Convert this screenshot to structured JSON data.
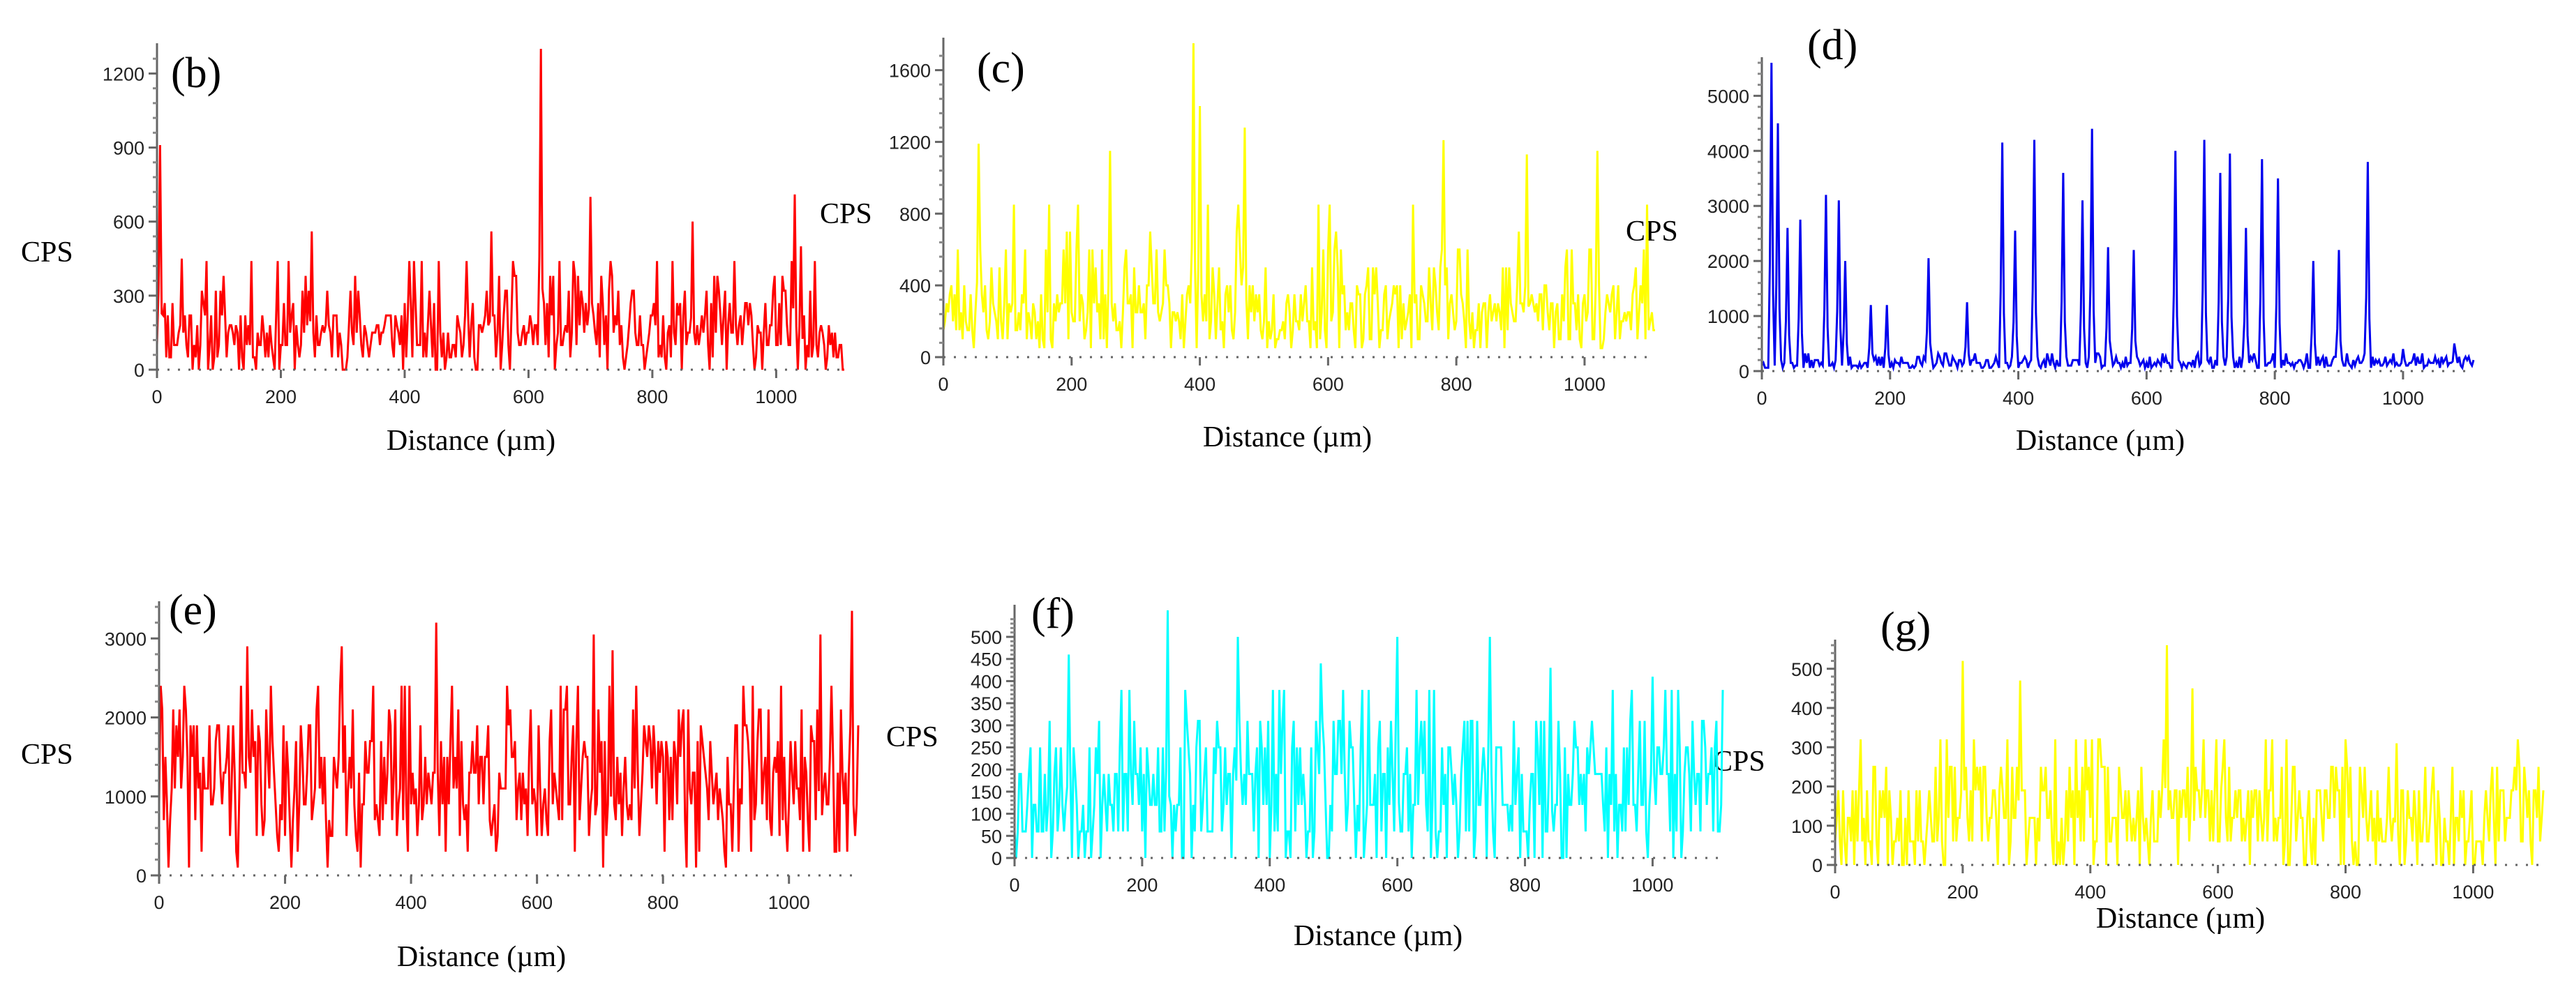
{
  "chart_data": [
    {
      "type": "line",
      "panel_label": "(b)",
      "color": "#ff0000",
      "xlabel": "Distance (µm)",
      "ylabel": "CPS",
      "xlim": [
        0,
        1110
      ],
      "ylim": [
        0,
        1300
      ],
      "xticks": [
        0,
        200,
        400,
        600,
        800,
        1000
      ],
      "yticks": [
        0,
        300,
        600,
        900,
        1200
      ],
      "x_step_um": 2.5,
      "baseline": {
        "levels": [
          0,
          50,
          100,
          150,
          180,
          220,
          270,
          320,
          380,
          440
        ],
        "weights": [
          2,
          4,
          5,
          4,
          3,
          3,
          2,
          2,
          1,
          1
        ]
      },
      "seed": 11,
      "peaks": [
        {
          "x": 5,
          "y": 910
        },
        {
          "x": 40,
          "y": 450
        },
        {
          "x": 250,
          "y": 560
        },
        {
          "x": 540,
          "y": 560
        },
        {
          "x": 620,
          "y": 1310
        },
        {
          "x": 700,
          "y": 700
        },
        {
          "x": 865,
          "y": 600
        },
        {
          "x": 1030,
          "y": 710
        },
        {
          "x": 1040,
          "y": 500
        }
      ]
    },
    {
      "type": "line",
      "panel_label": "(c)",
      "color": "#ffff00",
      "xlabel": "Distance (µm)",
      "ylabel": "CPS",
      "xlim": [
        0,
        1110
      ],
      "ylim": [
        0,
        1750
      ],
      "xticks": [
        0,
        200,
        400,
        600,
        800,
        1000
      ],
      "yticks": [
        0,
        400,
        800,
        1200,
        1600
      ],
      "x_step_um": 2.5,
      "baseline": {
        "levels": [
          50,
          100,
          150,
          200,
          250,
          300,
          350,
          400,
          500,
          600,
          700,
          850
        ],
        "weights": [
          2,
          3,
          4,
          5,
          5,
          4,
          3,
          3,
          2,
          2,
          1,
          1
        ]
      },
      "seed": 23,
      "peaks": [
        {
          "x": 55,
          "y": 1190
        },
        {
          "x": 260,
          "y": 1150
        },
        {
          "x": 390,
          "y": 1750
        },
        {
          "x": 400,
          "y": 1400
        },
        {
          "x": 470,
          "y": 1280
        },
        {
          "x": 780,
          "y": 1210
        },
        {
          "x": 910,
          "y": 1130
        },
        {
          "x": 1020,
          "y": 1150
        }
      ]
    },
    {
      "type": "line",
      "panel_label": "(d)",
      "color": "#0000ee",
      "xlabel": "Distance (µm)",
      "ylabel": "",
      "xlim": [
        0,
        1110
      ],
      "ylim": [
        0,
        5600
      ],
      "xticks": [
        0,
        200,
        400,
        600,
        800,
        1000
      ],
      "yticks": [
        0,
        1000,
        2000,
        3000,
        4000,
        5000
      ],
      "x_step_um": 2.5,
      "baseline": {
        "levels": [
          60,
          100,
          150,
          200,
          260,
          320
        ],
        "weights": [
          3,
          4,
          4,
          3,
          2,
          1
        ]
      },
      "seed": 37,
      "peaks": [
        {
          "x": 15,
          "y": 5600
        },
        {
          "x": 25,
          "y": 4500
        },
        {
          "x": 40,
          "y": 2600
        },
        {
          "x": 60,
          "y": 2750
        },
        {
          "x": 100,
          "y": 3200
        },
        {
          "x": 120,
          "y": 3100
        },
        {
          "x": 130,
          "y": 2000
        },
        {
          "x": 170,
          "y": 1200
        },
        {
          "x": 195,
          "y": 1200
        },
        {
          "x": 260,
          "y": 2050
        },
        {
          "x": 320,
          "y": 1250
        },
        {
          "x": 375,
          "y": 4150
        },
        {
          "x": 395,
          "y": 2550
        },
        {
          "x": 425,
          "y": 4200
        },
        {
          "x": 470,
          "y": 3600
        },
        {
          "x": 500,
          "y": 3100
        },
        {
          "x": 515,
          "y": 4400
        },
        {
          "x": 540,
          "y": 2250
        },
        {
          "x": 580,
          "y": 2200
        },
        {
          "x": 645,
          "y": 4000
        },
        {
          "x": 690,
          "y": 4200
        },
        {
          "x": 715,
          "y": 3600
        },
        {
          "x": 730,
          "y": 3950
        },
        {
          "x": 755,
          "y": 2600
        },
        {
          "x": 780,
          "y": 3850
        },
        {
          "x": 805,
          "y": 3500
        },
        {
          "x": 860,
          "y": 2000
        },
        {
          "x": 900,
          "y": 2200
        },
        {
          "x": 945,
          "y": 3800
        },
        {
          "x": 1000,
          "y": 400
        },
        {
          "x": 1080,
          "y": 500
        }
      ]
    },
    {
      "type": "line",
      "panel_label": "(e)",
      "color": "#ff0000",
      "xlabel": "Distance (µm)",
      "ylabel": "CPS",
      "xlim": [
        0,
        1110
      ],
      "ylim": [
        0,
        3400
      ],
      "xticks": [
        0,
        200,
        400,
        600,
        800,
        1000
      ],
      "yticks": [
        0,
        1000,
        2000,
        3000
      ],
      "x_step_um": 2.5,
      "baseline": {
        "levels": [
          100,
          300,
          500,
          700,
          900,
          1100,
          1300,
          1500,
          1700,
          1900,
          2100,
          2400
        ],
        "weights": [
          1,
          2,
          3,
          4,
          5,
          5,
          5,
          5,
          4,
          3,
          3,
          2
        ]
      },
      "seed": 41,
      "peaks": [
        {
          "x": 140,
          "y": 2900
        },
        {
          "x": 290,
          "y": 2900
        },
        {
          "x": 440,
          "y": 3200
        },
        {
          "x": 690,
          "y": 3050
        },
        {
          "x": 720,
          "y": 2850
        },
        {
          "x": 1050,
          "y": 3050
        },
        {
          "x": 1100,
          "y": 3350
        }
      ]
    },
    {
      "type": "line",
      "panel_label": "(f)",
      "color": "#00ffff",
      "xlabel": "Distance (µm)",
      "ylabel": "CPS",
      "xlim": [
        0,
        1110
      ],
      "ylim": [
        0,
        560
      ],
      "xticks": [
        0,
        200,
        400,
        600,
        800,
        1000
      ],
      "yticks": [
        0,
        50,
        100,
        150,
        200,
        250,
        300,
        350,
        400,
        450,
        500
      ],
      "x_step_um": 2.5,
      "baseline": {
        "levels": [
          0,
          60,
          120,
          190,
          250,
          310,
          380
        ],
        "weights": [
          2,
          4,
          5,
          4,
          3,
          2,
          1
        ]
      },
      "seed": 53,
      "peaks": [
        {
          "x": 85,
          "y": 460
        },
        {
          "x": 240,
          "y": 560
        },
        {
          "x": 350,
          "y": 500
        },
        {
          "x": 480,
          "y": 440
        },
        {
          "x": 600,
          "y": 500
        },
        {
          "x": 745,
          "y": 500
        },
        {
          "x": 840,
          "y": 430
        },
        {
          "x": 1000,
          "y": 410
        }
      ]
    },
    {
      "type": "line",
      "panel_label": "(g)",
      "color": "#ffff00",
      "xlabel": "Distance (µm)",
      "ylabel": "",
      "xlim": [
        0,
        1110
      ],
      "ylim": [
        0,
        560
      ],
      "xticks": [
        0,
        200,
        400,
        600,
        800,
        1000
      ],
      "yticks": [
        0,
        100,
        200,
        300,
        400,
        500
      ],
      "x_step_um": 2.5,
      "baseline": {
        "levels": [
          0,
          60,
          120,
          190,
          250,
          320
        ],
        "weights": [
          2,
          4,
          5,
          4,
          2,
          1
        ]
      },
      "seed": 67,
      "peaks": [
        {
          "x": 200,
          "y": 520
        },
        {
          "x": 290,
          "y": 470
        },
        {
          "x": 520,
          "y": 560
        },
        {
          "x": 560,
          "y": 450
        },
        {
          "x": 880,
          "y": 310
        },
        {
          "x": 1070,
          "y": 320
        }
      ]
    }
  ]
}
